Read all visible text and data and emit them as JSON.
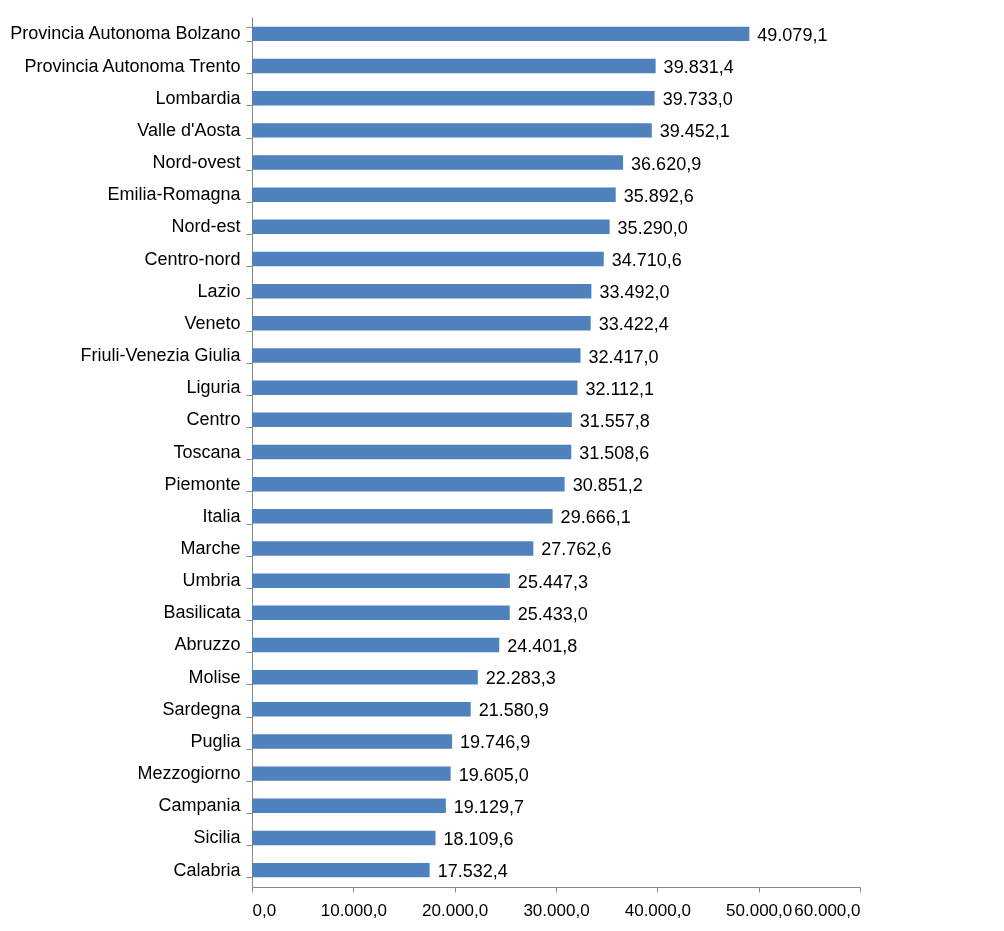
{
  "chart_data": {
    "type": "bar",
    "orientation": "horizontal",
    "categories": [
      "Provincia Autonoma Bolzano",
      "Provincia Autonoma Trento",
      "Lombardia",
      "Valle d'Aosta",
      "Nord-ovest",
      "Emilia-Romagna",
      "Nord-est",
      "Centro-nord",
      "Lazio",
      "Veneto",
      "Friuli-Venezia Giulia",
      "Liguria",
      "Centro",
      "Toscana",
      "Piemonte",
      "Italia",
      "Marche",
      "Umbria",
      "Basilicata",
      "Abruzzo",
      "Molise",
      "Sardegna",
      "Puglia",
      "Mezzogiorno",
      "Campania",
      "Sicilia",
      "Calabria"
    ],
    "values": [
      49079.1,
      39831.4,
      39733.0,
      39452.1,
      36620.9,
      35892.6,
      35290.0,
      34710.6,
      33492.0,
      33422.4,
      32417.0,
      32112.1,
      31557.8,
      31508.6,
      30851.2,
      29666.1,
      27762.6,
      25447.3,
      25433.0,
      24401.8,
      22283.3,
      21580.9,
      19746.9,
      19605.0,
      19129.7,
      18109.6,
      17532.4
    ],
    "value_labels": [
      "49.079,1",
      "39.831,4",
      "39.733,0",
      "39.452,1",
      "36.620,9",
      "35.892,6",
      "35.290,0",
      "34.710,6",
      "33.492,0",
      "33.422,4",
      "32.417,0",
      "32.112,1",
      "31.557,8",
      "31.508,6",
      "30.851,2",
      "29.666,1",
      "27.762,6",
      "25.447,3",
      "25.433,0",
      "24.401,8",
      "22.283,3",
      "21.580,9",
      "19.746,9",
      "19.605,0",
      "19.129,7",
      "18.109,6",
      "17.532,4"
    ],
    "color": "#4f81bd",
    "xlim": [
      0,
      60000
    ],
    "xticks": [
      {
        "value": 0,
        "label": "0,0"
      },
      {
        "value": 10000,
        "label": "10.000,0"
      },
      {
        "value": 20000,
        "label": "20.000,0"
      },
      {
        "value": 30000,
        "label": "30.000,0"
      },
      {
        "value": 40000,
        "label": "40.000,0"
      },
      {
        "value": 50000,
        "label": "50.000,0"
      },
      {
        "value": 60000,
        "label": "60.000,0"
      }
    ],
    "grid": false
  }
}
